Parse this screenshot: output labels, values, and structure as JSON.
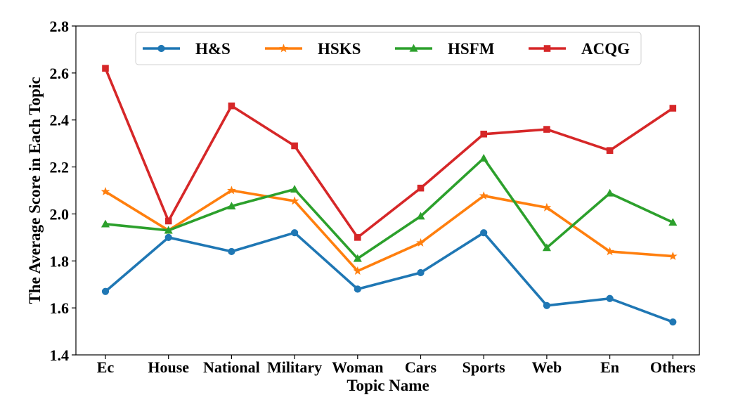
{
  "chart_data": {
    "type": "line",
    "title": "",
    "xlabel": "Topic Name",
    "ylabel": "The Average Score in Each Topic",
    "categories": [
      "Ec",
      "House",
      "National",
      "Military",
      "Woman",
      "Cars",
      "Sports",
      "Web",
      "En",
      "Others"
    ],
    "ylim": [
      1.4,
      2.8
    ],
    "yticks": [
      "1.4",
      "1.6",
      "1.8",
      "2.0",
      "2.2",
      "2.4",
      "2.6",
      "2.8"
    ],
    "grid": false,
    "legend_position": "top-center",
    "series": [
      {
        "name": "H&S",
        "color": "#1f77b4",
        "marker": "circle",
        "values": [
          1.67,
          1.9,
          1.84,
          1.92,
          1.68,
          1.75,
          1.92,
          1.61,
          1.64,
          1.54
        ]
      },
      {
        "name": "HSKS",
        "color": "#ff7f0e",
        "marker": "star",
        "values": [
          2.095,
          1.93,
          2.1,
          2.055,
          1.757,
          1.877,
          2.077,
          2.027,
          1.84,
          1.82
        ]
      },
      {
        "name": "HSFM",
        "color": "#2ca02c",
        "marker": "triangle",
        "values": [
          1.957,
          1.93,
          2.033,
          2.105,
          1.81,
          1.99,
          2.237,
          1.856,
          2.088,
          1.964
        ]
      },
      {
        "name": "ACQG",
        "color": "#d62728",
        "marker": "square",
        "values": [
          2.62,
          1.97,
          2.46,
          2.29,
          1.9,
          2.11,
          2.34,
          2.36,
          2.27,
          2.45
        ]
      }
    ]
  }
}
